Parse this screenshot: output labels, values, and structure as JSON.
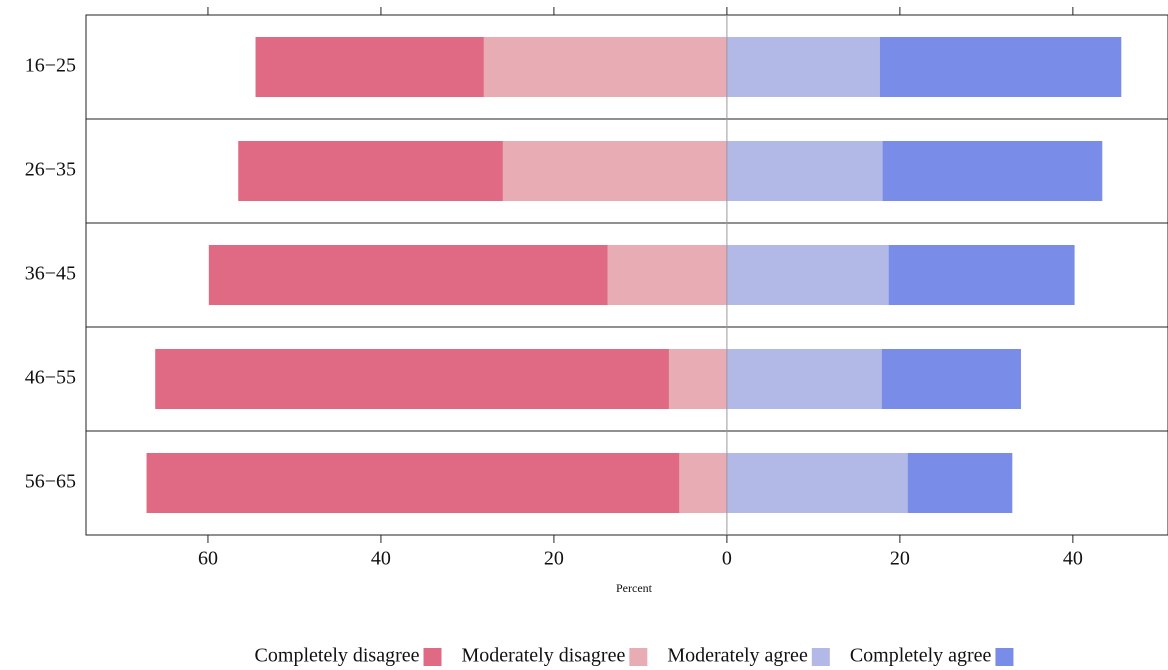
{
  "chart_data": {
    "type": "bar",
    "orientation": "horizontal",
    "stacked": true,
    "diverging": true,
    "xlabel": "Percent",
    "categories": [
      "16−25",
      "26−35",
      "36−45",
      "46−55",
      "56−65"
    ],
    "series": [
      {
        "name": "Completely disagree",
        "color": "#e06a84",
        "values": [
          -26.4,
          -30.6,
          -46.1,
          -59.4,
          -61.6
        ]
      },
      {
        "name": "Moderately disagree",
        "color": "#e8acb5",
        "values": [
          -28.1,
          -25.9,
          -13.8,
          -6.7,
          -5.5
        ]
      },
      {
        "name": "Moderately agree",
        "color": "#b2b9e6",
        "values": [
          17.7,
          18.0,
          18.7,
          17.9,
          20.9
        ]
      },
      {
        "name": "Completely agree",
        "color": "#788ce8",
        "values": [
          27.9,
          25.4,
          21.5,
          16.1,
          12.1
        ]
      }
    ],
    "xlim": [
      -74.1,
      51.0
    ],
    "xticks": [
      {
        "value": -60,
        "label": "60"
      },
      {
        "value": -40,
        "label": "40"
      },
      {
        "value": -20,
        "label": "20"
      },
      0,
      20,
      40
    ],
    "legend": "bottom"
  }
}
